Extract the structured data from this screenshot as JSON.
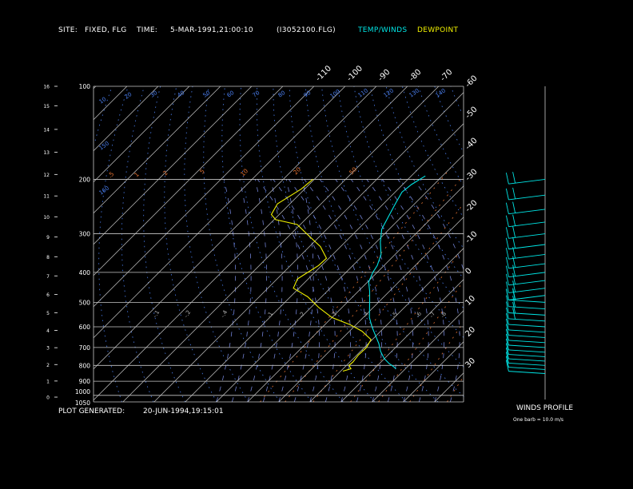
{
  "header": {
    "site_label": "SITE:",
    "site_value": "FIXED, FLG",
    "time_label": "TIME:",
    "time_value": "5-MAR-1991,21:00:10",
    "file": "(I3052100.FLG)",
    "legend_temp": "TEMP/WINDS",
    "legend_dew": "DEWPOINT"
  },
  "footer": {
    "generated_label": "PLOT GENERATED:",
    "generated_value": "20-JUN-1994,19:15:01",
    "winds_title": "WINDS PROFILE",
    "barb_note": "One barb = 10.0 m/s"
  },
  "colors": {
    "background": "#000000",
    "temp": "#00e5e5",
    "dewpoint": "#f0f000",
    "isotherm": "#c8c8c8",
    "isobar": "#c8c8c8",
    "dry_adiabat": "#4a7ff0",
    "moist_adiabat": "#6f7fd0",
    "mixing_ratio": "#e07030",
    "text": "#ffffff"
  },
  "chart_data": {
    "type": "line",
    "diagram": "skew-T log-P",
    "pressure_ticks": [
      100,
      200,
      300,
      400,
      500,
      600,
      700,
      800,
      900,
      1000,
      1050
    ],
    "height_ticks_km": [
      0,
      1,
      2,
      3,
      4,
      5,
      6,
      7,
      8,
      9,
      10,
      11,
      12,
      13,
      14,
      15,
      16
    ],
    "isotherm_labels": [
      "-110",
      "-100",
      "-90",
      "-80",
      "-70",
      "-60",
      "-50",
      "-40",
      "-30",
      "-20",
      "-10",
      "0",
      "10",
      "20",
      "30"
    ],
    "dry_adiabat_labels": [
      "10",
      "20",
      "30",
      "40",
      "50",
      "60",
      "70",
      "80",
      "90",
      "100",
      "110",
      "120",
      "130",
      "140",
      "150",
      "160"
    ],
    "mixing_ratio_labels": [
      ".5",
      "1",
      "2",
      "5",
      "10",
      "20",
      "50"
    ],
    "moist_adiabat_labels": [
      "-.1",
      "-.2",
      "-.4",
      "-1",
      "-2",
      "-3",
      "-4",
      "-5",
      "-6",
      "-7",
      "-8"
    ],
    "series": [
      {
        "name": "TEMP/WINDS",
        "points": [
          {
            "p": 195,
            "t": -45.5
          },
          {
            "p": 208,
            "t": -47.2
          },
          {
            "p": 220,
            "t": -47.8
          },
          {
            "p": 240,
            "t": -46.2
          },
          {
            "p": 260,
            "t": -44.6
          },
          {
            "p": 290,
            "t": -42.4
          },
          {
            "p": 320,
            "t": -38.6
          },
          {
            "p": 350,
            "t": -34.5
          },
          {
            "p": 380,
            "t": -32.2
          },
          {
            "p": 400,
            "t": -31.4
          },
          {
            "p": 430,
            "t": -29.6
          },
          {
            "p": 460,
            "t": -26.4
          },
          {
            "p": 500,
            "t": -22.8
          },
          {
            "p": 560,
            "t": -18.0
          },
          {
            "p": 600,
            "t": -14.2
          },
          {
            "p": 640,
            "t": -10.3
          },
          {
            "p": 680,
            "t": -6.6
          },
          {
            "p": 720,
            "t": -3.6
          },
          {
            "p": 760,
            "t": -0.1
          },
          {
            "p": 790,
            "t": 3.2
          },
          {
            "p": 800,
            "t": 4.6
          },
          {
            "p": 820,
            "t": 7.0
          }
        ]
      },
      {
        "name": "DEWPOINT",
        "points": [
          {
            "p": 200,
            "t": -80.5
          },
          {
            "p": 215,
            "t": -81.1
          },
          {
            "p": 240,
            "t": -84.0
          },
          {
            "p": 260,
            "t": -82.5
          },
          {
            "p": 270,
            "t": -79.5
          },
          {
            "p": 280,
            "t": -71.0
          },
          {
            "p": 300,
            "t": -65.0
          },
          {
            "p": 330,
            "t": -56.5
          },
          {
            "p": 360,
            "t": -50.8
          },
          {
            "p": 380,
            "t": -51.0
          },
          {
            "p": 420,
            "t": -53.5
          },
          {
            "p": 450,
            "t": -51.8
          },
          {
            "p": 480,
            "t": -44.4
          },
          {
            "p": 520,
            "t": -37.4
          },
          {
            "p": 560,
            "t": -30.0
          },
          {
            "p": 590,
            "t": -22.0
          },
          {
            "p": 620,
            "t": -16.0
          },
          {
            "p": 660,
            "t": -10.4
          },
          {
            "p": 700,
            "t": -9.3
          },
          {
            "p": 740,
            "t": -9.5
          },
          {
            "p": 780,
            "t": -9.0
          },
          {
            "p": 800,
            "t": -9.2
          },
          {
            "p": 820,
            "t": -7.5
          },
          {
            "p": 835,
            "t": -9.3
          }
        ]
      }
    ],
    "axes": {
      "p_top": 100,
      "p_bottom": 1050,
      "t_range_at_bottom": [
        -100,
        35
      ]
    }
  }
}
